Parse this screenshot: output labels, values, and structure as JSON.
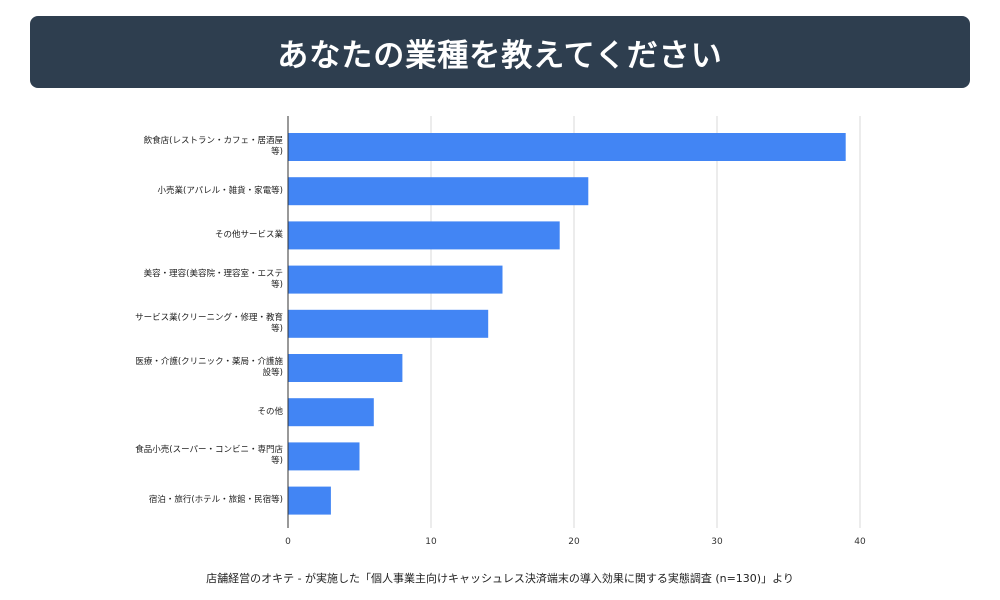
{
  "header": {
    "title": "あなたの業種を教えてください"
  },
  "chart_data": {
    "type": "bar",
    "orientation": "horizontal",
    "categories": [
      "飲食店(レストラン・カフェ・居酒屋等)",
      "小売業(アパレル・雑貨・家電等)",
      "その他サービス業",
      "美容・理容(美容院・理容室・エステ等)",
      "サービス業(クリーニング・修理・教育等)",
      "医療・介護(クリニック・薬局・介護施設等)",
      "その他",
      "食品小売(スーパー・コンビニ・専門店等)",
      "宿泊・旅行(ホテル・旅館・民宿等)"
    ],
    "values": [
      39,
      21,
      19,
      15,
      14,
      8,
      6,
      5,
      3
    ],
    "xlim": [
      0,
      40
    ],
    "xticks": [
      "0",
      "10",
      "20",
      "30",
      "40"
    ],
    "grid": true,
    "bar_color": "#4285f4"
  },
  "source": "店舗経営のオキテ - が実施した「個人事業主向けキャッシュレス決済端末の導入効果に関する実態調査 (n=130)」より"
}
